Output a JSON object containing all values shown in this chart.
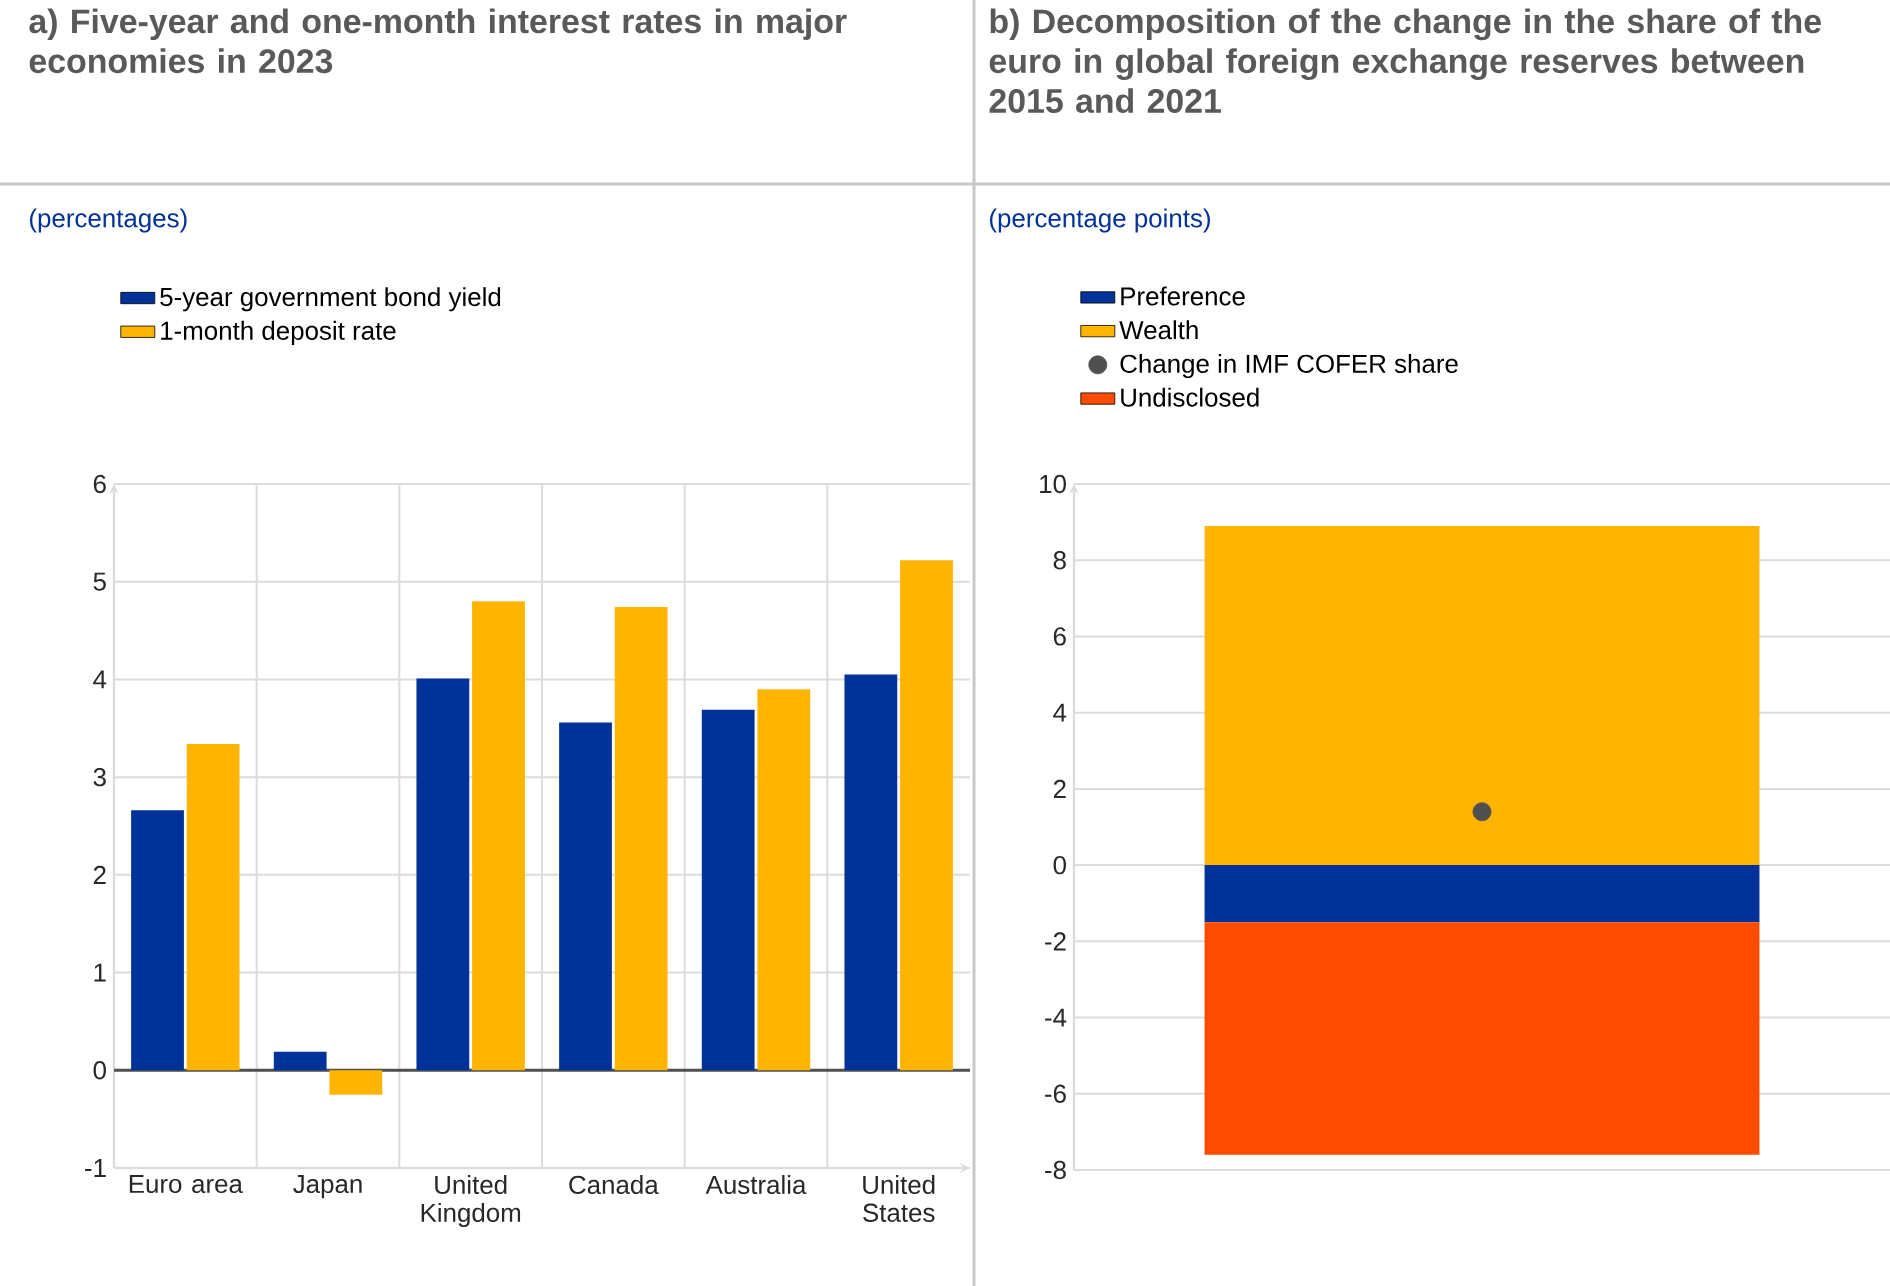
{
  "chart_data": [
    {
      "type": "bar",
      "title": "a) Five-year and one-month interest rates in major economies in 2023",
      "subtitle": "(percentages)",
      "categories": [
        "Euro area",
        "Japan",
        "United Kingdom",
        "Canada",
        "Australia",
        "United States"
      ],
      "series": [
        {
          "name": "5-year government bond yield",
          "color": "#003299",
          "values": [
            2.66,
            0.19,
            4.01,
            3.56,
            3.69,
            4.05
          ]
        },
        {
          "name": "1-month deposit rate",
          "color": "#ffb400",
          "values": [
            3.34,
            -0.25,
            4.8,
            4.74,
            3.9,
            5.22
          ]
        }
      ],
      "ylim": [
        -1,
        6
      ],
      "yticks": [
        -1,
        0,
        1,
        2,
        3,
        4,
        5,
        6
      ],
      "grid": true,
      "legend": "top left"
    },
    {
      "type": "bar",
      "title": "b) Decomposition of the change in the share of the euro in global foreign exchange reserves between 2015 and 2021",
      "subtitle": "(percentage points)",
      "categories": [
        null
      ],
      "stacked": true,
      "series": [
        {
          "name": "Preference",
          "color": "#003299",
          "values": [
            -1.5
          ]
        },
        {
          "name": "Wealth",
          "color": "#ffb400",
          "values": [
            8.9
          ]
        },
        {
          "name": "Change in IMF COFER share",
          "type": "scatter",
          "color": "#505050",
          "values": [
            1.4
          ]
        },
        {
          "name": "Undisclosed",
          "color": "#ff4b00",
          "values": [
            -6.1
          ]
        }
      ],
      "ylim": [
        -8,
        10
      ],
      "yticks": [
        -8,
        -6,
        -4,
        -2,
        0,
        2,
        4,
        6,
        8,
        10
      ],
      "grid": "y",
      "legend": "top left"
    }
  ]
}
